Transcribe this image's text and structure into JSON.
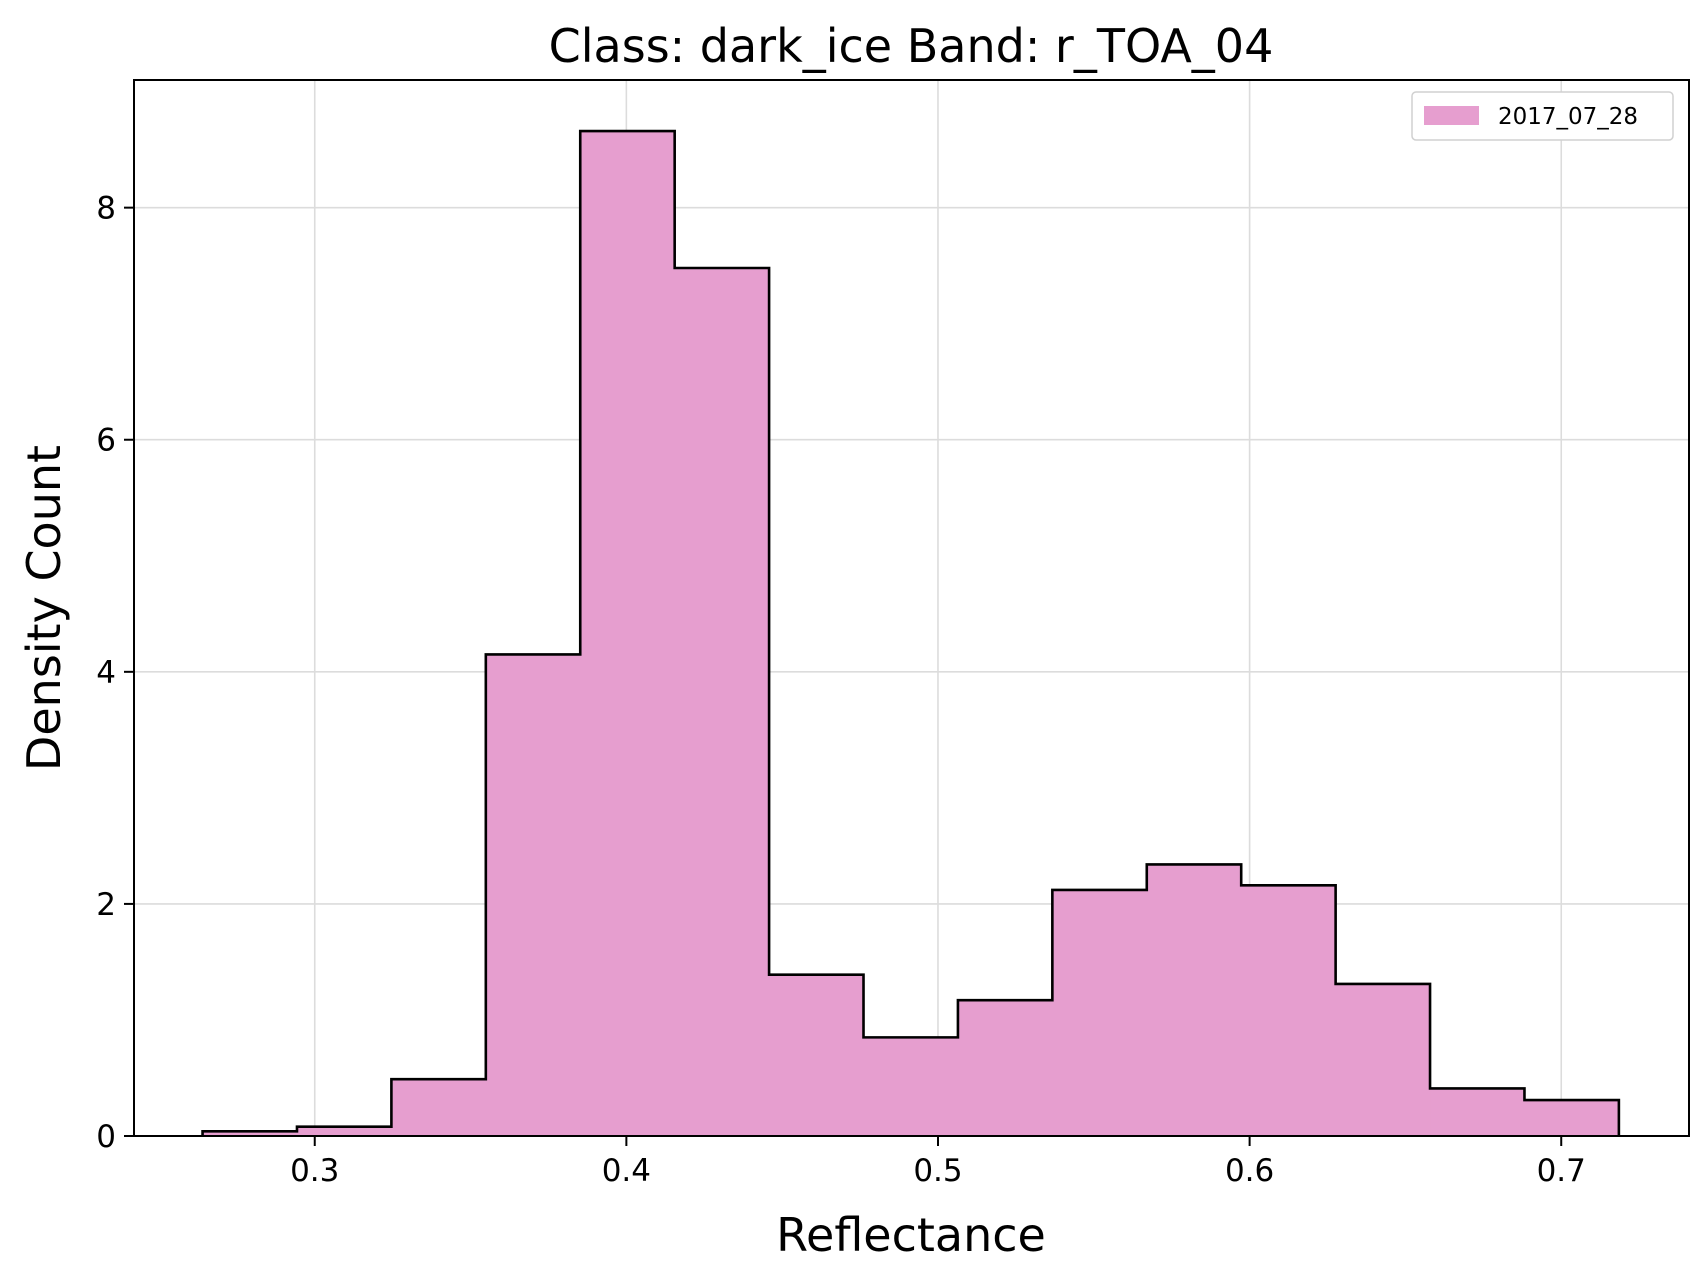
{
  "chart_data": {
    "type": "bar",
    "title": "Class: dark_ice Band: r_TOA_04",
    "xlabel": "Reflectance",
    "ylabel": "Density Count",
    "xlim": [
      0.242,
      0.741
    ],
    "ylim": [
      0,
      9.1
    ],
    "xticks": [
      0.3,
      0.4,
      0.5,
      0.6,
      0.7
    ],
    "xtick_labels": [
      "0.3",
      "0.4",
      "0.5",
      "0.6",
      "0.7"
    ],
    "yticks": [
      0,
      2,
      4,
      6,
      8
    ],
    "ytick_labels": [
      "0",
      "2",
      "4",
      "6",
      "8"
    ],
    "grid": true,
    "legend_position": "top-right",
    "histtype": "stepfilled",
    "bin_edges": [
      0.264,
      0.2943,
      0.3246,
      0.3549,
      0.3852,
      0.4155,
      0.4458,
      0.4761,
      0.5064,
      0.5367,
      0.567,
      0.5973,
      0.6276,
      0.6579,
      0.6882,
      0.7185
    ],
    "series": [
      {
        "name": "2017_07_28",
        "color": "#e69ecf",
        "edge_color": "#000000",
        "values": [
          0.04,
          0.08,
          0.49,
          4.15,
          8.66,
          7.48,
          1.39,
          0.85,
          1.17,
          2.12,
          2.34,
          2.16,
          1.31,
          0.41,
          0.31
        ]
      }
    ]
  }
}
